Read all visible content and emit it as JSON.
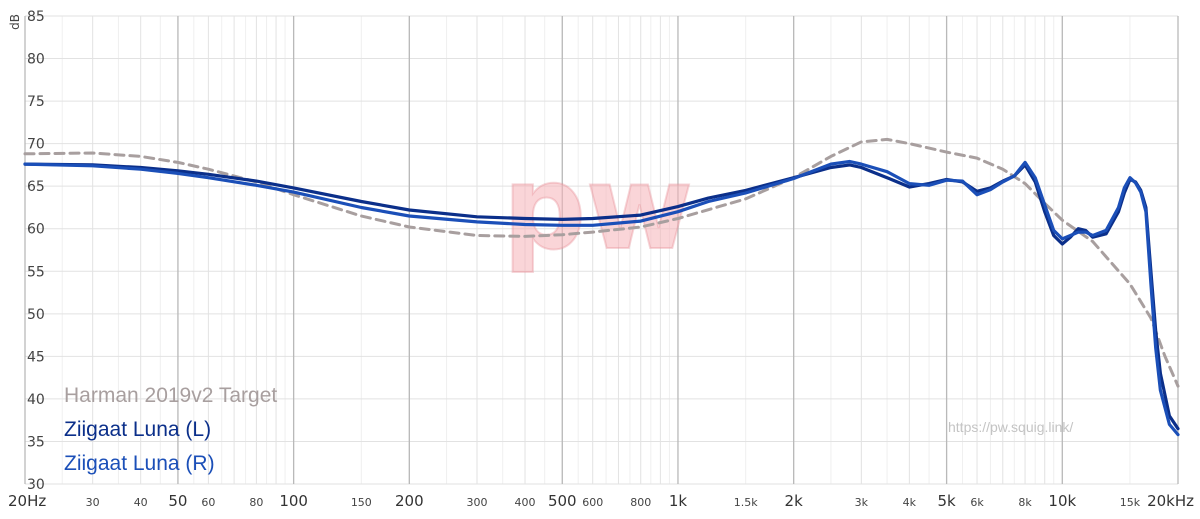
{
  "chart_data": {
    "type": "line",
    "xscale": "log",
    "xlim": [
      20,
      20000
    ],
    "ylim": [
      30,
      85
    ],
    "ylabel": "dB",
    "yticks": [
      "30",
      "35",
      "40",
      "45",
      "50",
      "55",
      "60",
      "65",
      "70",
      "75",
      "80",
      "85"
    ],
    "xticks": [
      {
        "value": 20,
        "label": "20Hz",
        "major": true
      },
      {
        "value": 30,
        "label": "30",
        "major": false
      },
      {
        "value": 40,
        "label": "40",
        "major": false
      },
      {
        "value": 50,
        "label": "50",
        "major": true
      },
      {
        "value": 60,
        "label": "60",
        "major": false
      },
      {
        "value": 80,
        "label": "80",
        "major": false
      },
      {
        "value": 100,
        "label": "100",
        "major": true
      },
      {
        "value": 150,
        "label": "150",
        "major": false
      },
      {
        "value": 200,
        "label": "200",
        "major": true
      },
      {
        "value": 300,
        "label": "300",
        "major": false
      },
      {
        "value": 400,
        "label": "400",
        "major": false
      },
      {
        "value": 500,
        "label": "500",
        "major": true
      },
      {
        "value": 600,
        "label": "600",
        "major": false
      },
      {
        "value": 800,
        "label": "800",
        "major": false
      },
      {
        "value": 1000,
        "label": "1k",
        "major": true
      },
      {
        "value": 1500,
        "label": "1.5k",
        "major": false
      },
      {
        "value": 2000,
        "label": "2k",
        "major": true
      },
      {
        "value": 3000,
        "label": "3k",
        "major": false
      },
      {
        "value": 4000,
        "label": "4k",
        "major": false
      },
      {
        "value": 5000,
        "label": "5k",
        "major": true
      },
      {
        "value": 6000,
        "label": "6k",
        "major": false
      },
      {
        "value": 8000,
        "label": "8k",
        "major": false
      },
      {
        "value": 10000,
        "label": "10k",
        "major": true
      },
      {
        "value": 15000,
        "label": "15k",
        "major": false
      },
      {
        "value": 20000,
        "label": "20kHz",
        "major": true
      }
    ],
    "series": [
      {
        "name": "Harman 2019v2 Target",
        "color": "#a89f9f",
        "dashed": true,
        "x": [
          20,
          30,
          40,
          50,
          60,
          80,
          100,
          150,
          200,
          300,
          400,
          500,
          600,
          800,
          1000,
          1500,
          2000,
          2500,
          3000,
          3500,
          4000,
          5000,
          6000,
          7000,
          8000,
          9000,
          10000,
          12000,
          15000,
          17000,
          18500,
          20000
        ],
        "y": [
          68.8,
          68.9,
          68.5,
          67.8,
          67.0,
          65.5,
          64.0,
          61.5,
          60.2,
          59.2,
          59.1,
          59.3,
          59.6,
          60.2,
          61.2,
          63.5,
          66.0,
          68.5,
          70.2,
          70.5,
          70.0,
          69.0,
          68.3,
          67.0,
          65.3,
          63.0,
          61.0,
          58.5,
          53.5,
          49.5,
          45.0,
          41.5
        ]
      },
      {
        "name": "Ziigaat Luna (L)",
        "color": "#0b2f8a",
        "dashed": false,
        "x": [
          20,
          30,
          40,
          50,
          60,
          80,
          100,
          150,
          200,
          300,
          400,
          500,
          600,
          800,
          1000,
          1200,
          1500,
          2000,
          2500,
          2800,
          3000,
          3500,
          4000,
          4500,
          5000,
          5500,
          6000,
          6500,
          7000,
          7500,
          8000,
          8500,
          9000,
          9500,
          10000,
          10500,
          11000,
          11500,
          12000,
          13000,
          14000,
          14500,
          15000,
          15500,
          16000,
          16500,
          17000,
          17500,
          18000,
          19000,
          20000
        ],
        "y": [
          67.6,
          67.5,
          67.2,
          66.8,
          66.4,
          65.6,
          64.8,
          63.2,
          62.2,
          61.4,
          61.2,
          61.1,
          61.2,
          61.6,
          62.6,
          63.6,
          64.5,
          66.0,
          67.2,
          67.5,
          67.2,
          66.0,
          64.9,
          65.3,
          65.8,
          65.5,
          64.4,
          64.8,
          65.6,
          66.2,
          67.5,
          65.5,
          62.0,
          59.2,
          58.2,
          59.0,
          60.0,
          59.8,
          59.0,
          59.4,
          62.0,
          64.2,
          65.8,
          65.5,
          64.5,
          62.5,
          55.0,
          48.0,
          43.0,
          38.0,
          36.5
        ]
      },
      {
        "name": "Ziigaat Luna (R)",
        "color": "#1b4fb8",
        "dashed": false,
        "x": [
          20,
          30,
          40,
          50,
          60,
          80,
          100,
          150,
          200,
          300,
          400,
          500,
          600,
          800,
          1000,
          1200,
          1500,
          2000,
          2500,
          2800,
          3000,
          3500,
          4000,
          4500,
          5000,
          5500,
          6000,
          6500,
          7000,
          7500,
          8000,
          8500,
          9000,
          9500,
          10000,
          10500,
          11000,
          11500,
          12000,
          13000,
          14000,
          14500,
          15000,
          15500,
          16000,
          16500,
          17000,
          17500,
          18000,
          19000,
          20000
        ],
        "y": [
          67.6,
          67.4,
          67.0,
          66.5,
          66.0,
          65.1,
          64.3,
          62.5,
          61.5,
          60.8,
          60.5,
          60.4,
          60.4,
          60.9,
          62.0,
          63.2,
          64.2,
          65.9,
          67.6,
          67.9,
          67.6,
          66.7,
          65.3,
          65.1,
          65.7,
          65.6,
          64.0,
          64.6,
          65.5,
          66.2,
          67.8,
          66.0,
          62.8,
          59.8,
          58.8,
          59.2,
          59.6,
          59.6,
          59.2,
          59.8,
          62.5,
          64.8,
          66.0,
          65.4,
          64.3,
          62.0,
          53.5,
          46.0,
          41.0,
          37.0,
          35.8
        ]
      }
    ],
    "legend": [
      "Harman 2019v2 Target",
      "Ziigaat Luna (L)",
      "Ziigaat Luna (R)"
    ],
    "legend_position": "bottom-left",
    "grid": true
  },
  "watermark": {
    "logo_text": "pw",
    "url": "https://pw.squig.link/",
    "logo_color": "#f6b3b8"
  }
}
